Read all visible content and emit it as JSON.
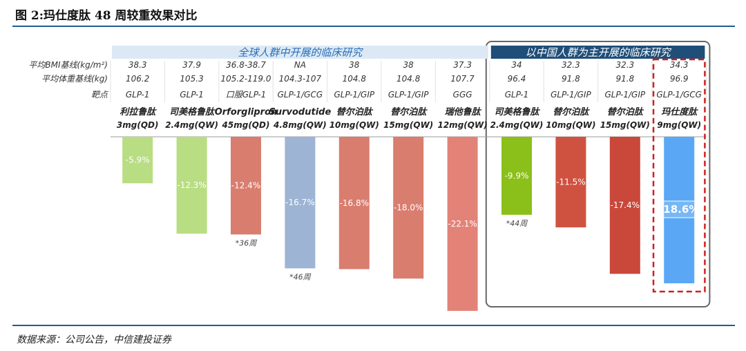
{
  "title": "图 2:玛仕度肽 48 周较重效果对比",
  "source": "数据来源：公司公告，中信建投证券",
  "colors": {
    "rule": "#1f5b98",
    "banner_bg": "#dce9f5",
    "banner_text": "#2a6eb8",
    "china_banner_bg": "#1f4e79",
    "highlight": "#cc1f1f"
  },
  "chart_data": {
    "type": "bar",
    "ylim": [
      -24,
      0
    ],
    "groups": [
      {
        "label": "全球人群中开展的临床研究",
        "from": 0,
        "to": 6
      },
      {
        "label": "以中国人群为主开展的临床研究",
        "from": 7,
        "to": 10
      }
    ],
    "row_labels": {
      "bmi": "平均BMI基线(kg/m²)",
      "weight": "平均体重基线(kg)",
      "target": "靶点"
    },
    "bars": [
      {
        "drug": "利拉鲁肽",
        "dose": "3mg(QD)",
        "bmi": "38.3",
        "weight": "106.2",
        "target": "GLP-1",
        "value": -5.9,
        "label": "-5.9%",
        "color": "#b9dd82",
        "note": ""
      },
      {
        "drug": "司美格鲁肽",
        "dose": "2.4mg(QW)",
        "bmi": "37.9",
        "weight": "105.3",
        "target": "GLP-1",
        "value": -12.3,
        "label": "-12.3%",
        "color": "#b9dd82",
        "note": ""
      },
      {
        "drug": "Orforglipron",
        "dose": "45mg(QD)",
        "bmi": "36.8-38.7",
        "weight": "105.2-119.0",
        "target": "口服GLP-1",
        "value": -12.4,
        "label": "-12.4%",
        "color": "#d97d6f",
        "note": "*36周"
      },
      {
        "drug": "Survodutide",
        "dose": "4.8mg(QW)",
        "bmi": "NA",
        "weight": "104.3-107",
        "target": "GLP-1/GCG",
        "value": -16.7,
        "label": "-16.7%",
        "color": "#9eb4d4",
        "note": "*46周"
      },
      {
        "drug": "替尔泊肽",
        "dose": "10mg(QW)",
        "bmi": "38",
        "weight": "104.8",
        "target": "GLP-1/GIP",
        "value": -16.8,
        "label": "-16.8%",
        "color": "#d97d6f",
        "note": ""
      },
      {
        "drug": "替尔泊肽",
        "dose": "15mg(QW)",
        "bmi": "38",
        "weight": "104.8",
        "target": "GLP-1/GIP",
        "value": -18.0,
        "label": "-18.0%",
        "color": "#d97d6f",
        "note": ""
      },
      {
        "drug": "瑞他鲁肽",
        "dose": "12mg(QW)",
        "bmi": "37.3",
        "weight": "107.7",
        "target": "GGG",
        "value": -22.1,
        "label": "-22.1%",
        "color": "#e38377",
        "note": ""
      },
      {
        "drug": "司美格鲁肽",
        "dose": "2.4mg(QW)",
        "bmi": "34",
        "weight": "96.4",
        "target": "GLP-1",
        "value": -9.9,
        "label": "-9.9%",
        "color": "#8bbf1a",
        "note": "*44周"
      },
      {
        "drug": "替尔泊肽",
        "dose": "10mg(QW)",
        "bmi": "32.3",
        "weight": "91.8",
        "target": "GLP-1/GIP",
        "value": -11.5,
        "label": "-11.5%",
        "color": "#cf5240",
        "note": ""
      },
      {
        "drug": "替尔泊肽",
        "dose": "15mg(QW)",
        "bmi": "32.3",
        "weight": "91.8",
        "target": "GLP-1/GIP",
        "value": -17.4,
        "label": "-17.4%",
        "color": "#c9483a",
        "note": ""
      },
      {
        "drug": "玛仕度肽",
        "dose": "9mg(QW)",
        "bmi": "34.3",
        "weight": "96.9",
        "target": "GLP-1/GCG",
        "value": -18.6,
        "label": "-18.6%",
        "color": "#5aa8f5",
        "note": "",
        "highlight": true
      }
    ]
  }
}
